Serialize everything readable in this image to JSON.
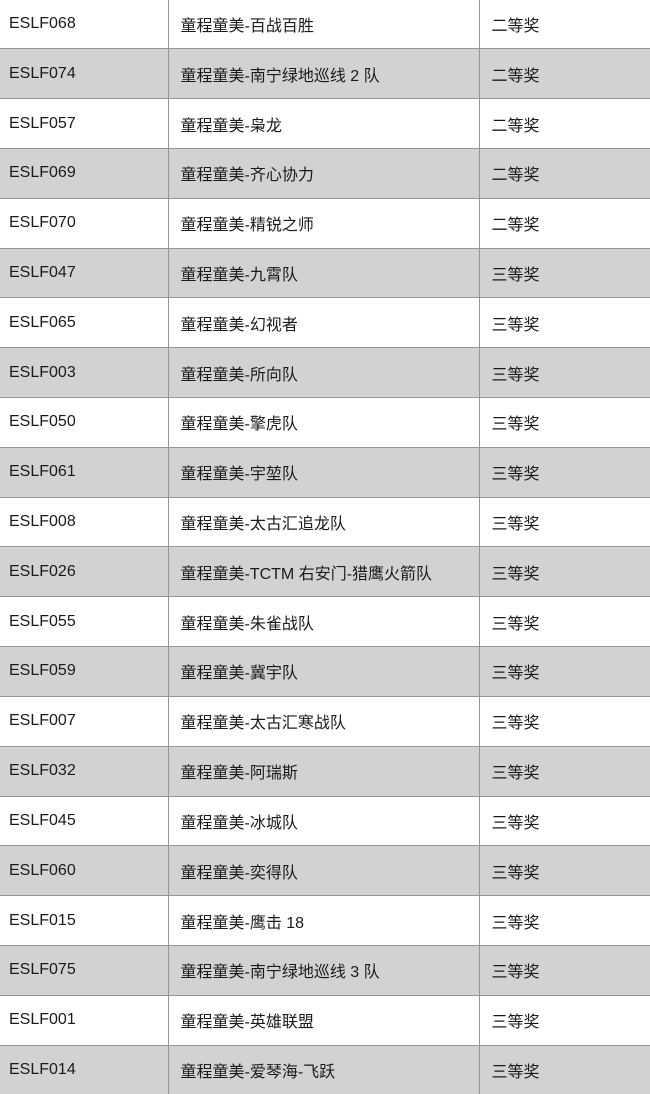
{
  "colors": {
    "row_bg": "#ffffff",
    "row_alt_bg": "#d2d2d2",
    "border": "#969696",
    "text": "#1a1a1a"
  },
  "table": {
    "rows": [
      {
        "code": "ESLF068",
        "team": "童程童美-百战百胜",
        "award": "二等奖"
      },
      {
        "code": "ESLF074",
        "team": "童程童美-南宁绿地巡线 2 队",
        "award": "二等奖"
      },
      {
        "code": "ESLF057",
        "team": "童程童美-枭龙",
        "award": "二等奖"
      },
      {
        "code": "ESLF069",
        "team": "童程童美-齐心协力",
        "award": "二等奖"
      },
      {
        "code": "ESLF070",
        "team": "童程童美-精锐之师",
        "award": "二等奖"
      },
      {
        "code": "ESLF047",
        "team": "童程童美-九霄队",
        "award": "三等奖"
      },
      {
        "code": "ESLF065",
        "team": "童程童美-幻视者",
        "award": "三等奖"
      },
      {
        "code": "ESLF003",
        "team": "童程童美-所向队",
        "award": "三等奖"
      },
      {
        "code": "ESLF050",
        "team": "童程童美-擎虎队",
        "award": "三等奖"
      },
      {
        "code": "ESLF061",
        "team": "童程童美-宇堃队",
        "award": "三等奖"
      },
      {
        "code": "ESLF008",
        "team": "童程童美-太古汇追龙队",
        "award": "三等奖"
      },
      {
        "code": "ESLF026",
        "team": "童程童美-TCTM 右安门-猎鹰火箭队",
        "award": "三等奖"
      },
      {
        "code": "ESLF055",
        "team": "童程童美-朱雀战队",
        "award": "三等奖"
      },
      {
        "code": "ESLF059",
        "team": "童程童美-冀宇队",
        "award": "三等奖"
      },
      {
        "code": "ESLF007",
        "team": "童程童美-太古汇寒战队",
        "award": "三等奖"
      },
      {
        "code": "ESLF032",
        "team": "童程童美-阿瑞斯",
        "award": "三等奖"
      },
      {
        "code": "ESLF045",
        "team": "童程童美-冰城队",
        "award": "三等奖"
      },
      {
        "code": "ESLF060",
        "team": "童程童美-奕得队",
        "award": "三等奖"
      },
      {
        "code": "ESLF015",
        "team": "童程童美-鹰击 18",
        "award": "三等奖"
      },
      {
        "code": "ESLF075",
        "team": "童程童美-南宁绿地巡线 3 队",
        "award": "三等奖"
      },
      {
        "code": "ESLF001",
        "team": "童程童美-英雄联盟",
        "award": "三等奖"
      },
      {
        "code": "ESLF014",
        "team": "童程童美-爱琴海-飞跃",
        "award": "三等奖"
      }
    ]
  }
}
